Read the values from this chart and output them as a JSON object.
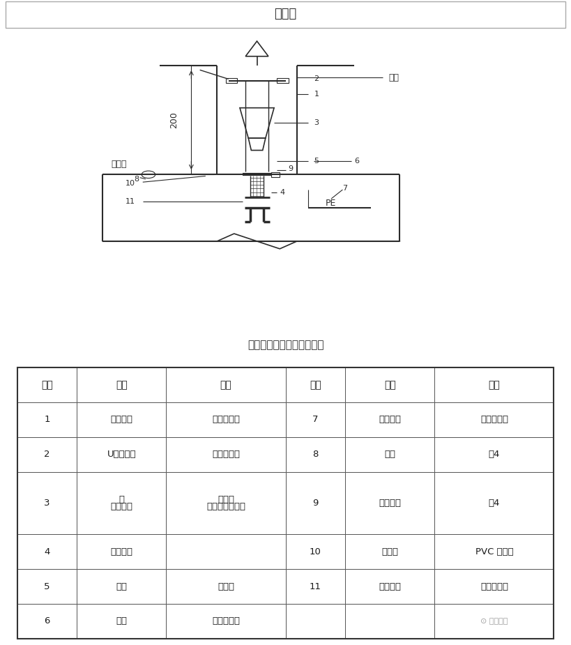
{
  "title": "大样图",
  "subtitle": "单根电缆进配电箱安装大样",
  "bg_color": "#ffffff",
  "line_color": "#2b2b2b",
  "table_headers": [
    "编号",
    "名称",
    "规格",
    "编号",
    "名称",
    "规格"
  ],
  "table_rows": [
    [
      "1",
      "电力电缆",
      "见工程设计",
      "7",
      "跨接地线",
      "见尺寸标准"
    ],
    [
      "2",
      "U型固定码",
      "与电缆配套",
      "8",
      "螺帽",
      "同4"
    ],
    [
      "3",
      "橡胶密封\n套",
      "铜电缆固定头配\n套零件",
      "9",
      "接地铜片",
      "同4"
    ],
    [
      "4",
      "基本躯体",
      "",
      "10",
      "标识牌",
      "PVC 椭圆牌"
    ],
    [
      "5",
      "线耳",
      "带塑套",
      "11",
      "电缆芯线",
      "见工程设计"
    ],
    [
      "6",
      "箱顶",
      "见工程设计",
      "",
      "",
      ""
    ]
  ],
  "watermark": "机电人脉",
  "label_caojia": "槽架",
  "label_peidianxiang": "配电箱",
  "label_pe": "PE",
  "label_200": "200"
}
